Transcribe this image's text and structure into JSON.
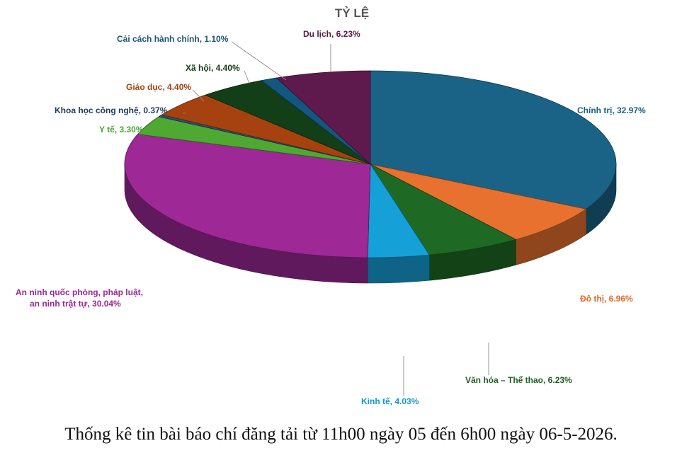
{
  "chart_data": {
    "type": "pie",
    "title": "TỶ LỆ",
    "slices": [
      {
        "label": "Chính trị",
        "value": 32.97,
        "display": "Chính trị, 32.97%",
        "color": "#1b6386",
        "text_color": "#1b5e80"
      },
      {
        "label": "Đô thị",
        "value": 6.96,
        "display": "Đô thị, 6.96%",
        "color": "#e8712f",
        "text_color": "#e06a2a"
      },
      {
        "label": "Văn hóa – Thể thao",
        "value": 6.23,
        "display": "Văn hóa – Thể thao, 6.23%",
        "color": "#1e6a24",
        "text_color": "#1e5f1f"
      },
      {
        "label": "Kinh tế",
        "value": 4.03,
        "display": "Kinh tế, 4.03%",
        "color": "#16a0d8",
        "text_color": "#139ad1"
      },
      {
        "label": "An ninh quốc phòng, pháp luật, an ninh trật tự",
        "value": 30.04,
        "display_lines": [
          "An ninh quốc phòng, pháp luật,",
          "an ninh trật tự, 30.04%"
        ],
        "color": "#9d2896",
        "text_color": "#9a2793"
      },
      {
        "label": "Y tế",
        "value": 3.3,
        "display": "Y tế, 3.30%",
        "color": "#4ea832",
        "text_color": "#4aa431"
      },
      {
        "label": "Khoa học công nghệ",
        "value": 0.37,
        "display": "Khoa học công nghệ, 0.37%",
        "color": "#27507a",
        "text_color": "#1d3a5c"
      },
      {
        "label": "Giáo dục",
        "value": 4.4,
        "display": "Giáo dục, 4.40%",
        "color": "#a5420f",
        "text_color": "#a34210"
      },
      {
        "label": "Xã hội",
        "value": 4.4,
        "display": "Xã hội, 4.40%",
        "color": "#123f17",
        "text_color": "#143a15"
      },
      {
        "label": "Cải cách hành chính",
        "value": 1.1,
        "display": "Cải cách hành chính, 1.10%",
        "color": "#13567f",
        "text_color": "#1a5378"
      },
      {
        "label": "Du lịch",
        "value": 6.23,
        "display": "Du lịch, 6.23%",
        "color": "#5e1a4c",
        "text_color": "#5b1a48"
      }
    ],
    "legend": "none",
    "data_labels": "outside-with-leader-lines"
  },
  "caption": "Thống kê tin bài báo chí đăng tải từ 11h00 ngày 05 đến 6h00 ngày 06-5-2026."
}
